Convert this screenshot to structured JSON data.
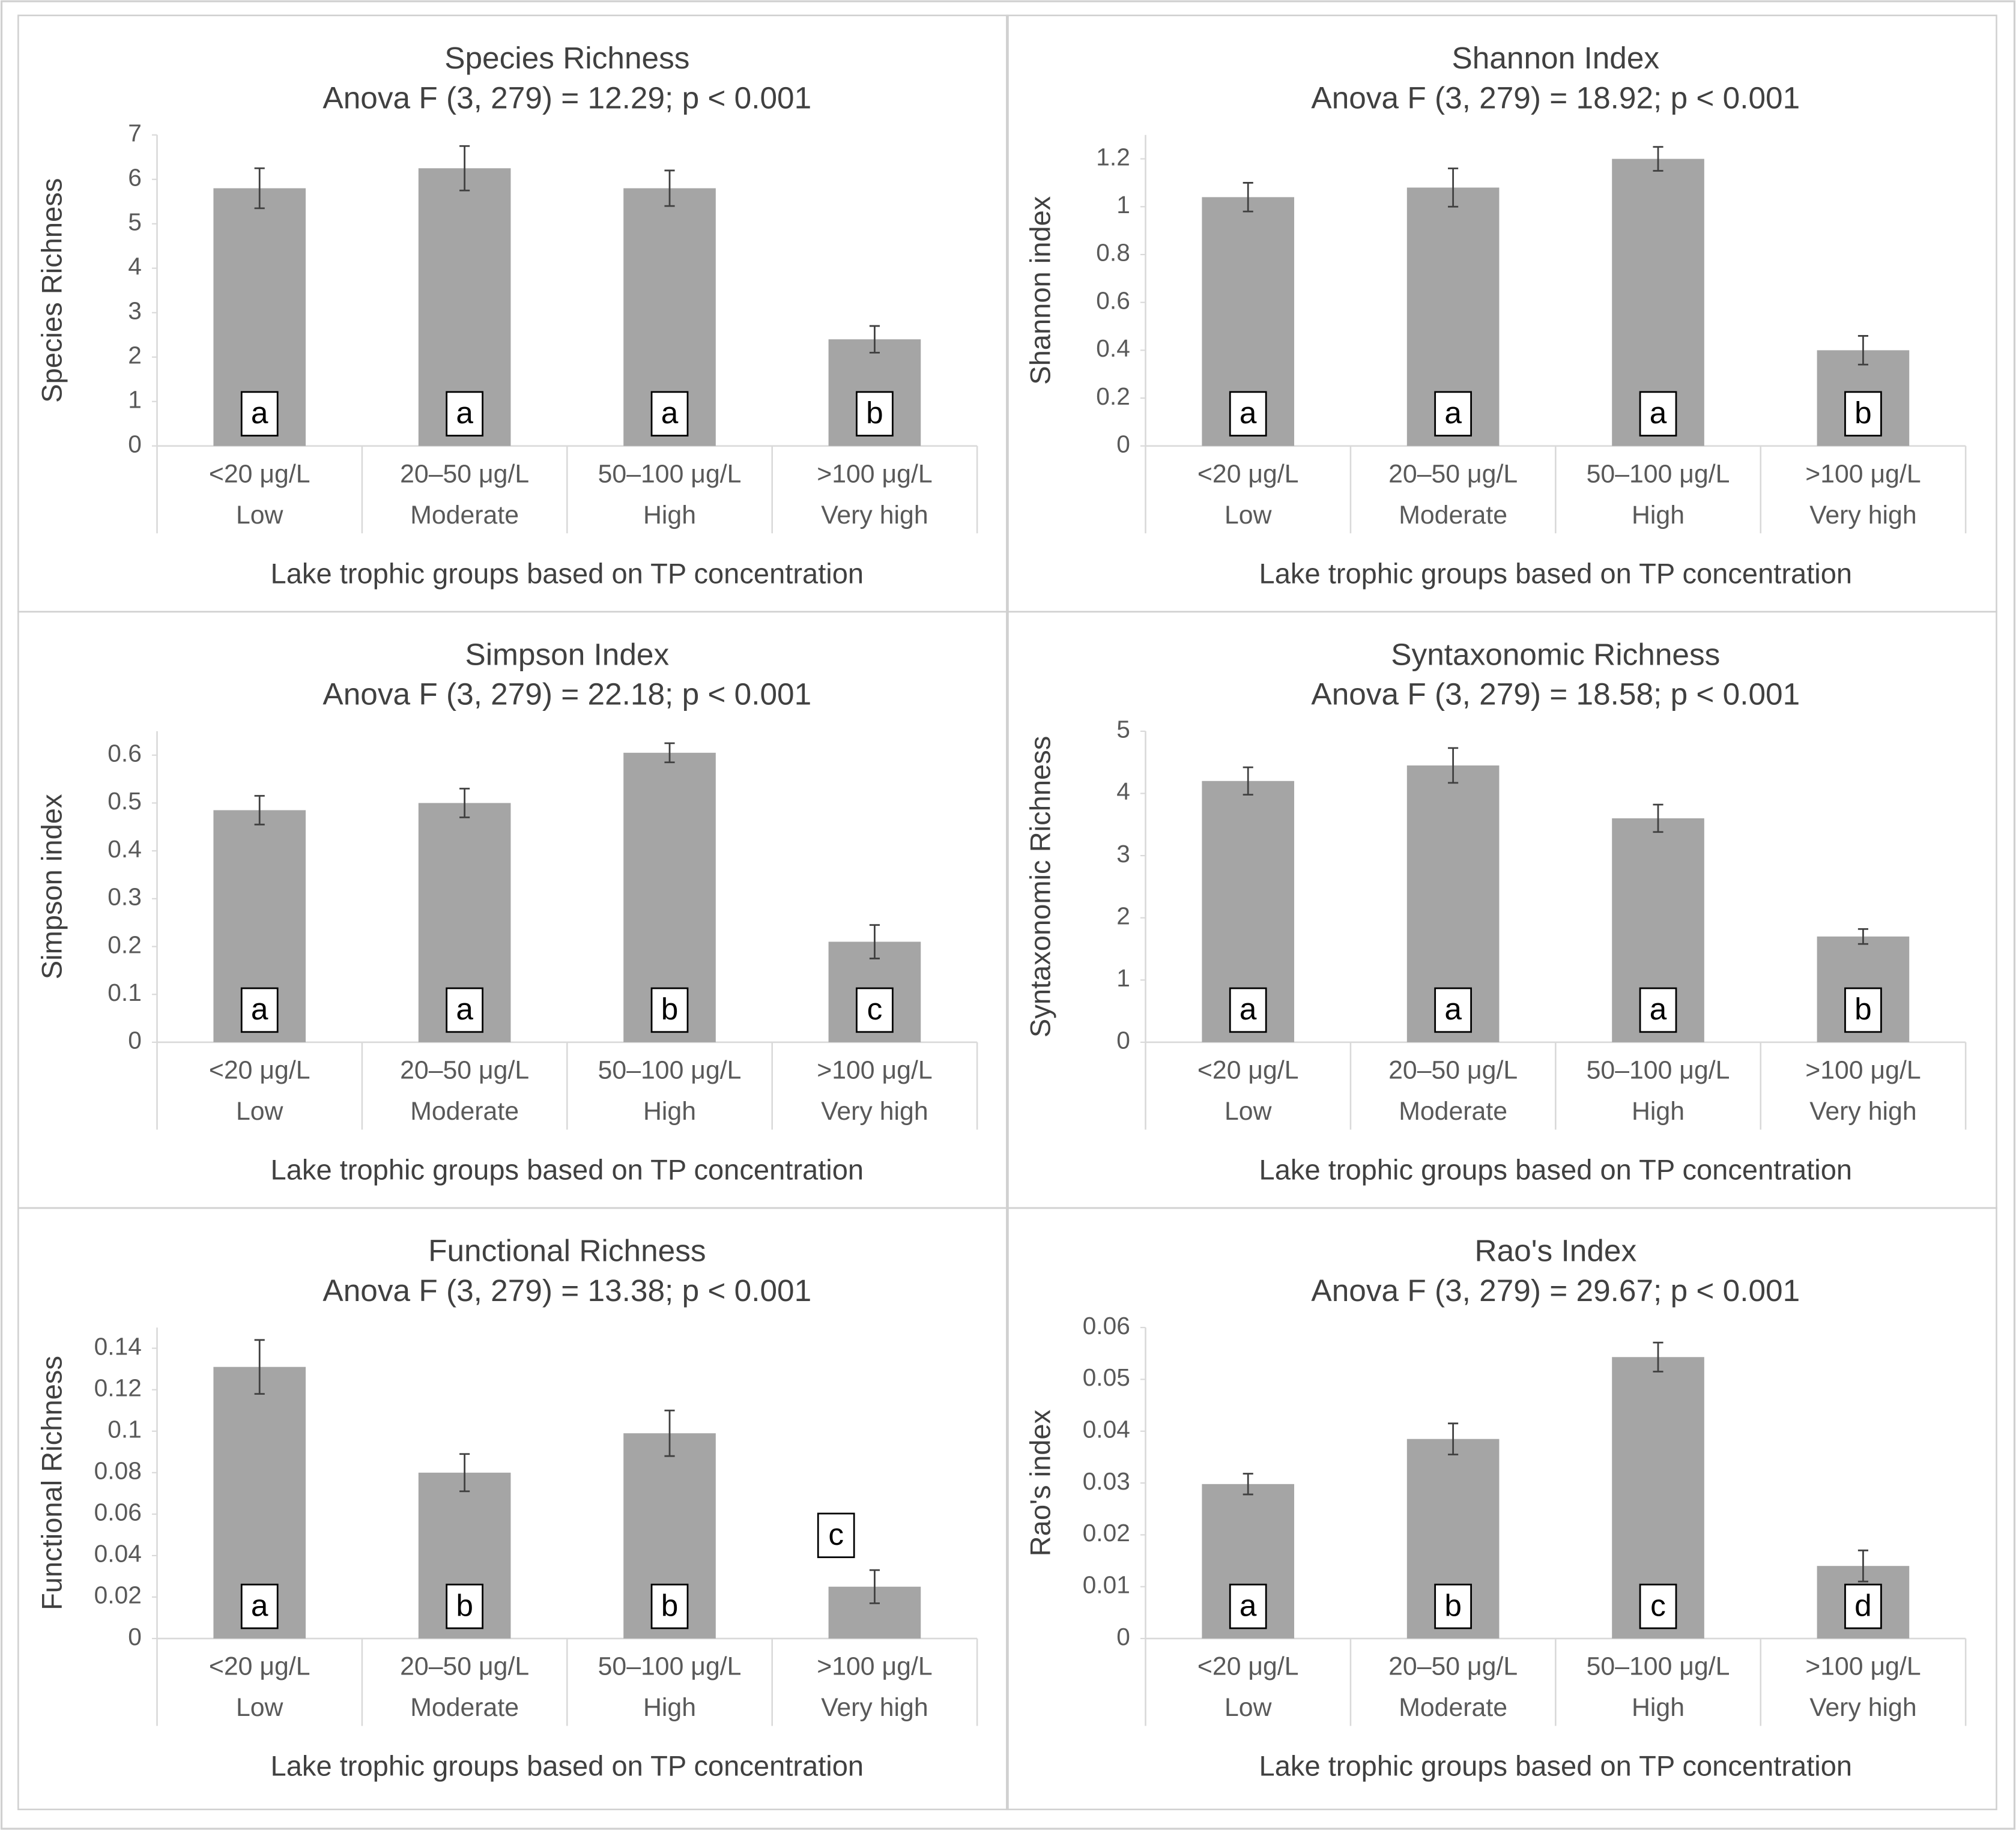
{
  "chart_data": [
    {
      "type": "bar",
      "title": "Species Richness",
      "subtitle": "Anova F (3, 279) = 12.29; p < 0.001",
      "y_label": "Species Richness",
      "x_label": "Lake trophic groups based on TP concentration",
      "categories": [
        [
          "<20 μg/L",
          "Low"
        ],
        [
          "20–50 μg/L",
          "Moderate"
        ],
        [
          "50–100 μg/L",
          "High"
        ],
        [
          ">100 μg/L",
          "Very high"
        ]
      ],
      "values": [
        5.8,
        6.25,
        5.8,
        2.4
      ],
      "errors": [
        0.45,
        0.5,
        0.4,
        0.3
      ],
      "letters": [
        "a",
        "a",
        "a",
        "b"
      ],
      "color": "#a5a5a5",
      "ylim": [
        0,
        7
      ],
      "yticks": [
        0,
        1,
        2,
        3,
        4,
        5,
        6,
        7
      ]
    },
    {
      "type": "bar",
      "title": "Shannon Index",
      "subtitle": "Anova F (3, 279) = 18.92; p < 0.001",
      "y_label": "Shannon index",
      "x_label": "Lake trophic groups based on TP concentration",
      "categories": [
        [
          "<20 μg/L",
          "Low"
        ],
        [
          "20–50 μg/L",
          "Moderate"
        ],
        [
          "50–100 μg/L",
          "High"
        ],
        [
          ">100 μg/L",
          "Very high"
        ]
      ],
      "values": [
        1.04,
        1.08,
        1.2,
        0.4
      ],
      "errors": [
        0.06,
        0.08,
        0.05,
        0.06
      ],
      "letters": [
        "a",
        "a",
        "a",
        "b"
      ],
      "color": "#a5a5a5",
      "ylim": [
        0,
        1.3
      ],
      "yticks": [
        0,
        0.2,
        0.4,
        0.6,
        0.8,
        1,
        1.2
      ]
    },
    {
      "type": "bar",
      "title": "Simpson Index",
      "subtitle": "Anova F (3, 279) = 22.18; p < 0.001",
      "y_label": "Simpson index",
      "x_label": "Lake trophic groups based on TP concentration",
      "categories": [
        [
          "<20 μg/L",
          "Low"
        ],
        [
          "20–50 μg/L",
          "Moderate"
        ],
        [
          "50–100 μg/L",
          "High"
        ],
        [
          ">100 μg/L",
          "Very high"
        ]
      ],
      "values": [
        0.485,
        0.5,
        0.605,
        0.21
      ],
      "errors": [
        0.03,
        0.03,
        0.02,
        0.035
      ],
      "letters": [
        "a",
        "a",
        "b",
        "c"
      ],
      "color": "#a5a5a5",
      "ylim": [
        0,
        0.65
      ],
      "yticks": [
        0,
        0.1,
        0.2,
        0.3,
        0.4,
        0.5,
        0.6
      ]
    },
    {
      "type": "bar",
      "title": "Syntaxonomic Richness",
      "subtitle": "Anova F (3, 279) = 18.58; p < 0.001",
      "y_label": "Syntaxonomic Richness",
      "x_label": "Lake trophic groups based on TP concentration",
      "categories": [
        [
          "<20 μg/L",
          "Low"
        ],
        [
          "20–50 μg/L",
          "Moderate"
        ],
        [
          "50–100 μg/L",
          "High"
        ],
        [
          ">100 μg/L",
          "Very high"
        ]
      ],
      "values": [
        4.2,
        4.45,
        3.6,
        1.7
      ],
      "errors": [
        0.22,
        0.28,
        0.22,
        0.12
      ],
      "letters": [
        "a",
        "a",
        "a",
        "b"
      ],
      "color": "#a5a5a5",
      "ylim": [
        0,
        5
      ],
      "yticks": [
        0,
        1,
        2,
        3,
        4,
        5
      ]
    },
    {
      "type": "bar",
      "title": "Functional Richness",
      "subtitle": "Anova F (3, 279) = 13.38; p < 0.001",
      "y_label": "Functional Richness",
      "x_label": "Lake trophic groups based on TP concentration",
      "categories": [
        [
          "<20 μg/L",
          "Low"
        ],
        [
          "20–50 μg/L",
          "Moderate"
        ],
        [
          "50–100 μg/L",
          "High"
        ],
        [
          ">100 μg/L",
          "Very high"
        ]
      ],
      "values": [
        0.131,
        0.08,
        0.099,
        0.025
      ],
      "errors": [
        0.013,
        0.009,
        0.011,
        0.008
      ],
      "letters": [
        "a",
        "b",
        "b",
        "c"
      ],
      "color": "#a5a5a5",
      "ylim": [
        0,
        0.15
      ],
      "yticks": [
        0,
        0.02,
        0.04,
        0.06,
        0.08,
        0.1,
        0.12,
        0.14
      ]
    },
    {
      "type": "bar",
      "title": "Rao's Index",
      "subtitle": "Anova F (3, 279) = 29.67; p < 0.001",
      "y_label": "Rao's index",
      "x_label": "Lake trophic groups based on TP concentration",
      "categories": [
        [
          "<20 μg/L",
          "Low"
        ],
        [
          "20–50 μg/L",
          "Moderate"
        ],
        [
          "50–100 μg/L",
          "High"
        ],
        [
          ">100 μg/L",
          "Very high"
        ]
      ],
      "values": [
        0.0298,
        0.0385,
        0.0543,
        0.014
      ],
      "errors": [
        0.002,
        0.003,
        0.0028,
        0.003
      ],
      "letters": [
        "a",
        "b",
        "c",
        "d"
      ],
      "color": "#a5a5a5",
      "ylim": [
        0,
        0.06
      ],
      "yticks": [
        0,
        0.01,
        0.02,
        0.03,
        0.04,
        0.05,
        0.06
      ]
    }
  ]
}
